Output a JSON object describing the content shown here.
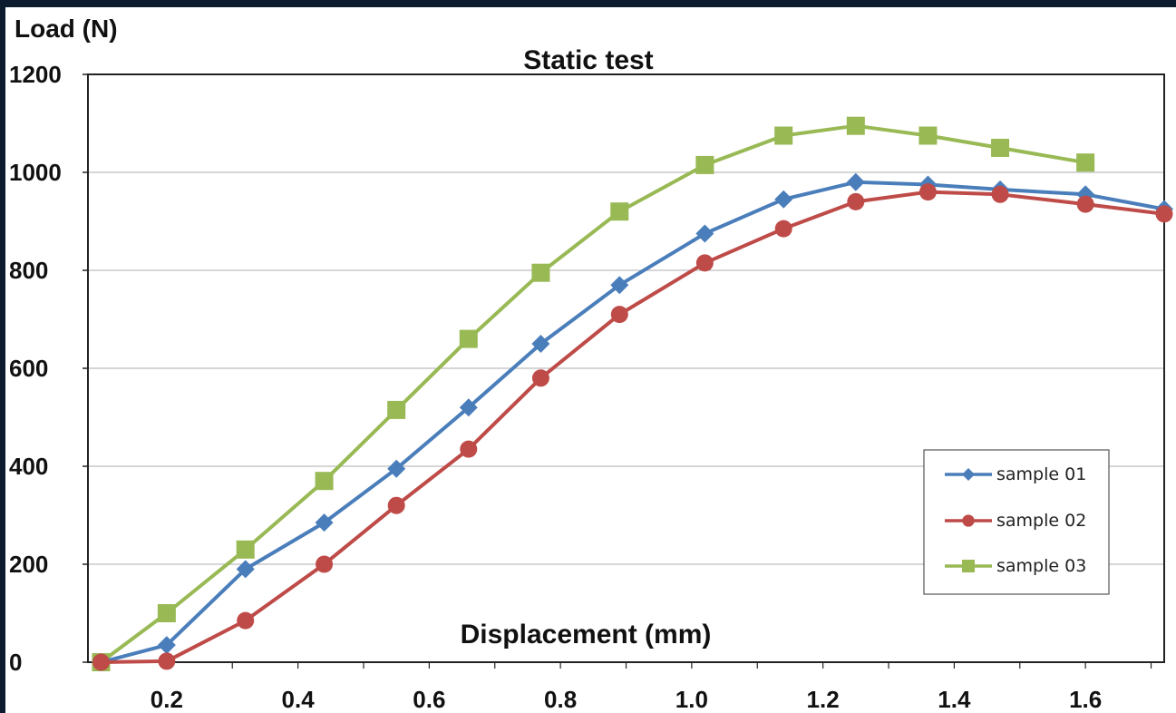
{
  "chart_data": {
    "type": "line",
    "title": "Static test",
    "ylabel": "Load (N)",
    "xlabel": "Displacement (mm)",
    "ylim": [
      0,
      1200
    ],
    "xlim": [
      0.08,
      1.72
    ],
    "yticks": [
      0,
      200,
      400,
      600,
      800,
      1000,
      1200
    ],
    "xticks": [
      0.2,
      0.4,
      0.6,
      0.8,
      1.0,
      1.2,
      1.4,
      1.6
    ],
    "xtick_labels": [
      "0.2",
      "0.4",
      "0.6",
      "0.8",
      "1.0",
      "1.2",
      "1.4",
      "1.6"
    ],
    "ytick_labels": [
      "0",
      "200",
      "400",
      "600",
      "800",
      "1000",
      "1200"
    ],
    "grid": "horizontal",
    "legend_position": "bottom-right",
    "series": [
      {
        "name": "sample 01",
        "color": "#4a7ebb",
        "marker": "diamond",
        "x": [
          0.1,
          0.2,
          0.32,
          0.44,
          0.55,
          0.66,
          0.77,
          0.89,
          1.02,
          1.14,
          1.25,
          1.36,
          1.47,
          1.6,
          1.72
        ],
        "y": [
          0,
          35,
          190,
          285,
          395,
          520,
          650,
          770,
          875,
          945,
          980,
          975,
          965,
          955,
          925
        ]
      },
      {
        "name": "sample 02",
        "color": "#be4b48",
        "marker": "circle",
        "x": [
          0.1,
          0.2,
          0.32,
          0.44,
          0.55,
          0.66,
          0.77,
          0.89,
          1.02,
          1.14,
          1.25,
          1.36,
          1.47,
          1.6,
          1.72
        ],
        "y": [
          0,
          2,
          85,
          200,
          320,
          435,
          580,
          710,
          815,
          885,
          940,
          960,
          955,
          935,
          915
        ]
      },
      {
        "name": "sample 03",
        "color": "#98b954",
        "marker": "square",
        "x": [
          0.1,
          0.2,
          0.32,
          0.44,
          0.55,
          0.66,
          0.77,
          0.89,
          1.02,
          1.14,
          1.25,
          1.36,
          1.47,
          1.6
        ],
        "y": [
          0,
          100,
          230,
          370,
          515,
          660,
          795,
          920,
          1015,
          1075,
          1095,
          1075,
          1050,
          1020
        ]
      }
    ]
  }
}
